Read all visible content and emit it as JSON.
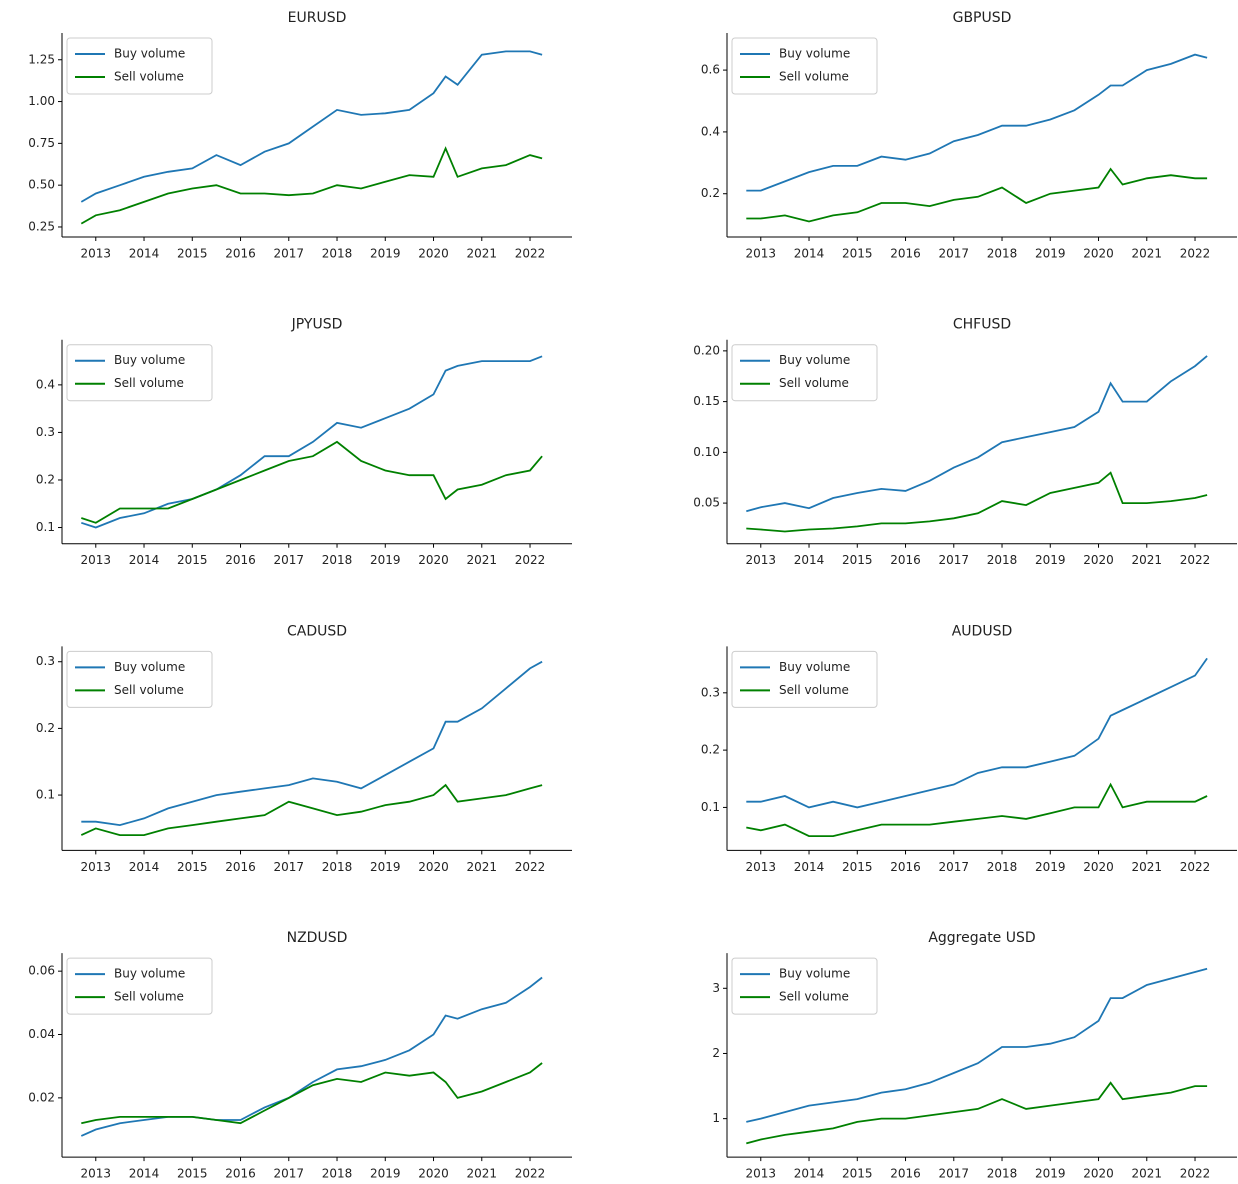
{
  "chart_data": [
    {
      "type": "line",
      "title": "EURUSD",
      "legend": "upper left",
      "x": [
        2012.7,
        2013,
        2013.5,
        2014,
        2014.5,
        2015,
        2015.5,
        2016,
        2016.5,
        2017,
        2017.5,
        2018,
        2018.5,
        2019,
        2019.5,
        2020,
        2020.25,
        2020.5,
        2021,
        2021.5,
        2022,
        2022.25
      ],
      "xlim": [
        2012.3,
        2022.87
      ],
      "xticks": [
        2013,
        2014,
        2015,
        2016,
        2017,
        2018,
        2019,
        2020,
        2021,
        2022
      ],
      "ylim": [
        0.19,
        1.41
      ],
      "yticks": [
        0.25,
        {
          "value": 0.5,
          "label": "0.50"
        },
        0.75,
        {
          "value": 1.0,
          "label": "1.00"
        },
        1.25
      ],
      "series": [
        {
          "name": "Buy volume",
          "color": "#1f77b4",
          "values": [
            0.4,
            0.45,
            0.5,
            0.55,
            0.58,
            0.6,
            0.68,
            0.62,
            0.7,
            0.75,
            0.85,
            0.95,
            0.92,
            0.93,
            0.95,
            1.05,
            1.15,
            1.1,
            1.28,
            1.3,
            1.3,
            1.28
          ]
        },
        {
          "name": "Sell volume",
          "color": "#008000",
          "values": [
            0.27,
            0.32,
            0.35,
            0.4,
            0.45,
            0.48,
            0.5,
            0.45,
            0.45,
            0.44,
            0.45,
            0.5,
            0.48,
            0.52,
            0.56,
            0.55,
            0.72,
            0.55,
            0.6,
            0.62,
            0.68,
            0.66
          ]
        }
      ]
    },
    {
      "type": "line",
      "title": "GBPUSD",
      "legend": "upper left",
      "x": [
        2012.7,
        2013,
        2013.5,
        2014,
        2014.5,
        2015,
        2015.5,
        2016,
        2016.5,
        2017,
        2017.5,
        2018,
        2018.5,
        2019,
        2019.5,
        2020,
        2020.25,
        2020.5,
        2021,
        2021.5,
        2022,
        2022.25
      ],
      "xlim": [
        2012.3,
        2022.87
      ],
      "xticks": [
        2013,
        2014,
        2015,
        2016,
        2017,
        2018,
        2019,
        2020,
        2021,
        2022
      ],
      "ylim": [
        0.06,
        0.72
      ],
      "yticks": [
        0.2,
        0.4,
        0.6
      ],
      "series": [
        {
          "name": "Buy volume",
          "color": "#1f77b4",
          "values": [
            0.21,
            0.21,
            0.24,
            0.27,
            0.29,
            0.29,
            0.32,
            0.31,
            0.33,
            0.37,
            0.39,
            0.42,
            0.42,
            0.44,
            0.47,
            0.52,
            0.55,
            0.55,
            0.6,
            0.62,
            0.65,
            0.64
          ]
        },
        {
          "name": "Sell volume",
          "color": "#008000",
          "values": [
            0.12,
            0.12,
            0.13,
            0.11,
            0.13,
            0.14,
            0.17,
            0.17,
            0.16,
            0.18,
            0.19,
            0.22,
            0.17,
            0.2,
            0.21,
            0.22,
            0.28,
            0.23,
            0.25,
            0.26,
            0.25,
            0.25
          ]
        }
      ]
    },
    {
      "type": "line",
      "title": "JPYUSD",
      "legend": "upper left",
      "x": [
        2012.7,
        2013,
        2013.5,
        2014,
        2014.5,
        2015,
        2015.5,
        2016,
        2016.5,
        2017,
        2017.5,
        2018,
        2018.5,
        2019,
        2019.5,
        2020,
        2020.25,
        2020.5,
        2021,
        2021.5,
        2022,
        2022.25
      ],
      "xlim": [
        2012.3,
        2022.87
      ],
      "xticks": [
        2013,
        2014,
        2015,
        2016,
        2017,
        2018,
        2019,
        2020,
        2021,
        2022
      ],
      "ylim": [
        0.066,
        0.495
      ],
      "yticks": [
        0.1,
        0.2,
        0.3,
        0.4
      ],
      "series": [
        {
          "name": "Buy volume",
          "color": "#1f77b4",
          "values": [
            0.11,
            0.1,
            0.12,
            0.13,
            0.15,
            0.16,
            0.18,
            0.21,
            0.25,
            0.25,
            0.28,
            0.32,
            0.31,
            0.33,
            0.35,
            0.38,
            0.43,
            0.44,
            0.45,
            0.45,
            0.45,
            0.46
          ]
        },
        {
          "name": "Sell volume",
          "color": "#008000",
          "values": [
            0.12,
            0.11,
            0.14,
            0.14,
            0.14,
            0.16,
            0.18,
            0.2,
            0.22,
            0.24,
            0.25,
            0.28,
            0.24,
            0.22,
            0.21,
            0.21,
            0.16,
            0.18,
            0.19,
            0.21,
            0.22,
            0.25
          ]
        }
      ]
    },
    {
      "type": "line",
      "title": "CHFUSD",
      "legend": "upper left",
      "x": [
        2012.7,
        2013,
        2013.5,
        2014,
        2014.5,
        2015,
        2015.5,
        2016,
        2016.5,
        2017,
        2017.5,
        2018,
        2018.5,
        2019,
        2019.5,
        2020,
        2020.25,
        2020.5,
        2021,
        2021.5,
        2022,
        2022.25
      ],
      "xlim": [
        2012.3,
        2022.87
      ],
      "xticks": [
        2013,
        2014,
        2015,
        2016,
        2017,
        2018,
        2019,
        2020,
        2021,
        2022
      ],
      "ylim": [
        0.01,
        0.211
      ],
      "yticks": [
        0.05,
        {
          "value": 0.1,
          "label": "0.10"
        },
        0.15,
        {
          "value": 0.2,
          "label": "0.20"
        }
      ],
      "series": [
        {
          "name": "Buy volume",
          "color": "#1f77b4",
          "values": [
            0.042,
            0.046,
            0.05,
            0.045,
            0.055,
            0.06,
            0.064,
            0.062,
            0.072,
            0.085,
            0.095,
            0.11,
            0.115,
            0.12,
            0.125,
            0.14,
            0.168,
            0.15,
            0.15,
            0.17,
            0.185,
            0.195
          ]
        },
        {
          "name": "Sell volume",
          "color": "#008000",
          "values": [
            0.025,
            0.024,
            0.022,
            0.024,
            0.025,
            0.027,
            0.03,
            0.03,
            0.032,
            0.035,
            0.04,
            0.052,
            0.048,
            0.06,
            0.065,
            0.07,
            0.08,
            0.05,
            0.05,
            0.052,
            0.055,
            0.058
          ]
        }
      ]
    },
    {
      "type": "line",
      "title": "CADUSD",
      "legend": "upper left",
      "x": [
        2012.7,
        2013,
        2013.5,
        2014,
        2014.5,
        2015,
        2015.5,
        2016,
        2016.5,
        2017,
        2017.5,
        2018,
        2018.5,
        2019,
        2019.5,
        2020,
        2020.25,
        2020.5,
        2021,
        2021.5,
        2022,
        2022.25
      ],
      "xlim": [
        2012.3,
        2022.87
      ],
      "xticks": [
        2013,
        2014,
        2015,
        2016,
        2017,
        2018,
        2019,
        2020,
        2021,
        2022
      ],
      "ylim": [
        0.017,
        0.323
      ],
      "yticks": [
        0.1,
        0.2,
        0.3
      ],
      "series": [
        {
          "name": "Buy volume",
          "color": "#1f77b4",
          "values": [
            0.06,
            0.06,
            0.055,
            0.065,
            0.08,
            0.09,
            0.1,
            0.105,
            0.11,
            0.115,
            0.125,
            0.12,
            0.11,
            0.13,
            0.15,
            0.17,
            0.21,
            0.21,
            0.23,
            0.26,
            0.29,
            0.3
          ]
        },
        {
          "name": "Sell volume",
          "color": "#008000",
          "values": [
            0.04,
            0.05,
            0.04,
            0.04,
            0.05,
            0.055,
            0.06,
            0.065,
            0.07,
            0.09,
            0.08,
            0.07,
            0.075,
            0.085,
            0.09,
            0.1,
            0.115,
            0.09,
            0.095,
            0.1,
            0.11,
            0.115
          ]
        }
      ]
    },
    {
      "type": "line",
      "title": "AUDUSD",
      "legend": "upper left",
      "x": [
        2012.7,
        2013,
        2013.5,
        2014,
        2014.5,
        2015,
        2015.5,
        2016,
        2016.5,
        2017,
        2017.5,
        2018,
        2018.5,
        2019,
        2019.5,
        2020,
        2020.25,
        2020.5,
        2021,
        2021.5,
        2022,
        2022.25
      ],
      "xlim": [
        2012.3,
        2022.87
      ],
      "xticks": [
        2013,
        2014,
        2015,
        2016,
        2017,
        2018,
        2019,
        2020,
        2021,
        2022
      ],
      "ylim": [
        0.025,
        0.381
      ],
      "yticks": [
        0.1,
        0.2,
        0.3
      ],
      "series": [
        {
          "name": "Buy volume",
          "color": "#1f77b4",
          "values": [
            0.11,
            0.11,
            0.12,
            0.1,
            0.11,
            0.1,
            0.11,
            0.12,
            0.13,
            0.14,
            0.16,
            0.17,
            0.17,
            0.18,
            0.19,
            0.22,
            0.26,
            0.27,
            0.29,
            0.31,
            0.33,
            0.36
          ]
        },
        {
          "name": "Sell volume",
          "color": "#008000",
          "values": [
            0.065,
            0.06,
            0.07,
            0.05,
            0.05,
            0.06,
            0.07,
            0.07,
            0.07,
            0.075,
            0.08,
            0.085,
            0.08,
            0.09,
            0.1,
            0.1,
            0.14,
            0.1,
            0.11,
            0.11,
            0.11,
            0.12
          ]
        }
      ]
    },
    {
      "type": "line",
      "title": "NZDUSD",
      "legend": "upper left",
      "x": [
        2012.7,
        2013,
        2013.5,
        2014,
        2014.5,
        2015,
        2015.5,
        2016,
        2016.5,
        2017,
        2017.5,
        2018,
        2018.5,
        2019,
        2019.5,
        2020,
        2020.25,
        2020.5,
        2021,
        2021.5,
        2022,
        2022.25
      ],
      "xlim": [
        2012.3,
        2022.87
      ],
      "xticks": [
        2013,
        2014,
        2015,
        2016,
        2017,
        2018,
        2019,
        2020,
        2021,
        2022
      ],
      "ylim": [
        0.0013,
        0.0657
      ],
      "yticks": [
        0.02,
        0.04,
        0.06
      ],
      "series": [
        {
          "name": "Buy volume",
          "color": "#1f77b4",
          "values": [
            0.008,
            0.01,
            0.012,
            0.013,
            0.014,
            0.014,
            0.013,
            0.013,
            0.017,
            0.02,
            0.025,
            0.029,
            0.03,
            0.032,
            0.035,
            0.04,
            0.046,
            0.045,
            0.048,
            0.05,
            0.055,
            0.058
          ]
        },
        {
          "name": "Sell volume",
          "color": "#008000",
          "values": [
            0.012,
            0.013,
            0.014,
            0.014,
            0.014,
            0.014,
            0.013,
            0.012,
            0.016,
            0.02,
            0.024,
            0.026,
            0.025,
            0.028,
            0.027,
            0.028,
            0.025,
            0.02,
            0.022,
            0.025,
            0.028,
            0.031
          ]
        }
      ]
    },
    {
      "type": "line",
      "title": "Aggregate USD",
      "legend": "upper left",
      "x": [
        2012.7,
        2013,
        2013.5,
        2014,
        2014.5,
        2015,
        2015.5,
        2016,
        2016.5,
        2017,
        2017.5,
        2018,
        2018.5,
        2019,
        2019.5,
        2020,
        2020.25,
        2020.5,
        2021,
        2021.5,
        2022,
        2022.25
      ],
      "xlim": [
        2012.3,
        2022.87
      ],
      "xticks": [
        2013,
        2014,
        2015,
        2016,
        2017,
        2018,
        2019,
        2020,
        2021,
        2022
      ],
      "ylim": [
        0.41,
        3.54
      ],
      "yticks": [
        1,
        2,
        3
      ],
      "series": [
        {
          "name": "Buy volume",
          "color": "#1f77b4",
          "values": [
            0.95,
            1.0,
            1.1,
            1.2,
            1.25,
            1.3,
            1.4,
            1.45,
            1.55,
            1.7,
            1.85,
            2.1,
            2.1,
            2.15,
            2.25,
            2.5,
            2.85,
            2.85,
            3.05,
            3.15,
            3.25,
            3.3
          ]
        },
        {
          "name": "Sell volume",
          "color": "#008000",
          "values": [
            0.62,
            0.68,
            0.75,
            0.8,
            0.85,
            0.95,
            1.0,
            1.0,
            1.05,
            1.1,
            1.15,
            1.3,
            1.15,
            1.2,
            1.25,
            1.3,
            1.55,
            1.3,
            1.35,
            1.4,
            1.5,
            1.5
          ]
        }
      ]
    }
  ]
}
